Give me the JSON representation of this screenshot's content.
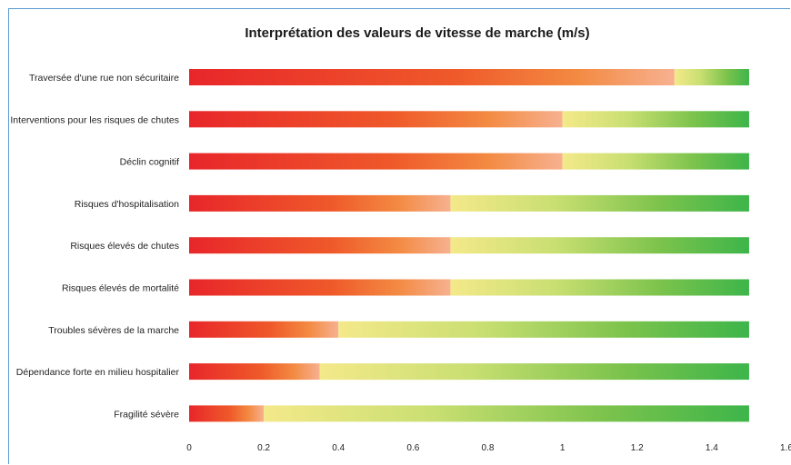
{
  "chart_data": {
    "type": "bar",
    "orientation": "horizontal",
    "title": "Interprétation des valeurs de vitesse de marche (m/s)",
    "xlabel": "",
    "ylabel": "",
    "xlim": [
      0,
      1.6
    ],
    "x_ticks": [
      "0",
      "0.2",
      "0.4",
      "0.6",
      "0.8",
      "1",
      "1.2",
      "1.4",
      "1.6"
    ],
    "categories": [
      "Traversée d'une rue non sécuritaire",
      "Interventions pour les risques de chutes",
      "Déclin cognitif",
      "Risques d'hospitalisation",
      "Risques élevés de chutes",
      "Risques élevés de mortalité",
      "Troubles sévères de la marche",
      "Dépendance forte en milieu hospitalier",
      "Fragilité sévère"
    ],
    "series": [
      {
        "values": [
          1.3,
          1.0,
          1.0,
          0.7,
          0.7,
          0.7,
          0.4,
          0.35,
          0.2
        ],
        "color": "#e8262a"
      },
      {
        "values": [
          0.2,
          0.5,
          0.5,
          0.8,
          0.8,
          0.8,
          1.1,
          1.15,
          1.3
        ],
        "color": "#3db54a"
      }
    ],
    "stacked": true,
    "grid": false,
    "legend": "none"
  }
}
